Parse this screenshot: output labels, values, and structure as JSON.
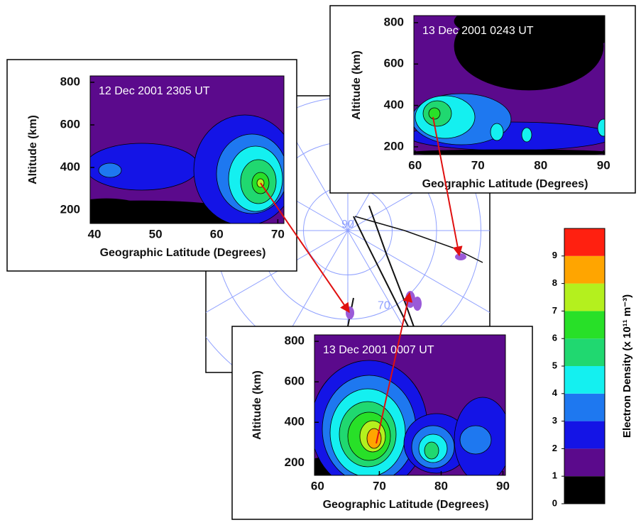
{
  "chart_data": [
    {
      "type": "polar",
      "rticks": [
        90,
        70
      ]
    },
    {
      "type": "contour",
      "annotation": "12 Dec 2001 2305 UT",
      "x_label": "Geographic Latitude (Degrees)",
      "y_label": "Altitude (km)",
      "xlim": [
        39.3,
        71
      ],
      "xticks": [
        40,
        50,
        60,
        70
      ],
      "ylim": [
        137,
        830
      ],
      "yticks": [
        200,
        400,
        600,
        800
      ]
    },
    {
      "type": "contour",
      "annotation": "13 Dec 2001 0243 UT",
      "x_label": "Geographic Latitude (Degrees)",
      "y_label": "Altitude (km)",
      "xlim": [
        59.8,
        90.2
      ],
      "xticks": [
        60,
        70,
        80,
        90
      ],
      "ylim": [
        162,
        834
      ],
      "yticks": [
        200,
        400,
        600,
        800
      ]
    },
    {
      "type": "contour",
      "annotation": "13 Dec 2001 0007 UT",
      "x_label": "Geographic Latitude (Degrees)",
      "y_label": "Altitude (km)",
      "xlim": [
        59.5,
        90.4
      ],
      "xticks": [
        60,
        70,
        80,
        90
      ],
      "ylim": [
        138,
        832
      ],
      "yticks": [
        200,
        400,
        600,
        800
      ]
    },
    {
      "type": "colorbar",
      "y_label": "Electron Density (x 10¹¹ m⁻³)",
      "levels": [
        0,
        1,
        2,
        3,
        4,
        5,
        6,
        7,
        8,
        9,
        10
      ],
      "yticks": [
        0,
        1,
        2,
        3,
        4,
        5,
        6,
        7,
        8,
        9
      ],
      "colors": [
        "#000000",
        "#5b0a8c",
        "#1414e6",
        "#1e78f0",
        "#14f0f0",
        "#20d870",
        "#28e028",
        "#b4f01e",
        "#ffa500",
        "#ff2010"
      ]
    }
  ]
}
